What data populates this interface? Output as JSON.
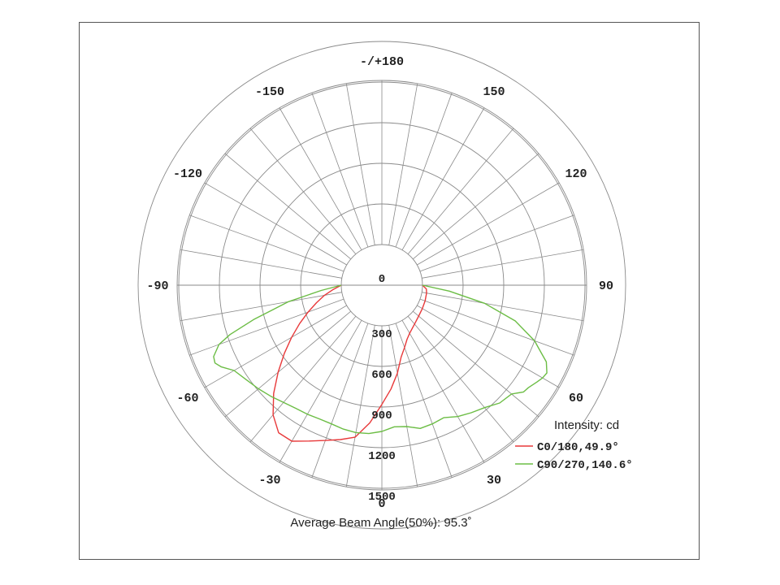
{
  "chart_data": {
    "type": "polar-line",
    "title": "",
    "intensity_unit_label": "Intensity: cd",
    "footer": "Average Beam Angle(50%): 95.3˚",
    "radial_axis": {
      "max": 1500,
      "ticks": [
        0,
        300,
        600,
        900,
        1200,
        1500
      ],
      "tick_labels": [
        "0",
        "300",
        "600",
        "900",
        "1200",
        "1500"
      ]
    },
    "angle_axis": {
      "spoke_step_deg": 10,
      "ticks": [
        0,
        30,
        60,
        90,
        120,
        150,
        180,
        -150,
        -120,
        -90,
        -60,
        -30
      ],
      "tick_labels": [
        "0",
        "30",
        "60",
        "90",
        "120",
        "150",
        "-/+180",
        "-150",
        "-120",
        "-90",
        "-60",
        "-30"
      ]
    },
    "grid": true,
    "legend_position": "bottom-right",
    "series": [
      {
        "name": "C0/180,49.9°",
        "color": "#e8393a",
        "points": [
          [
            -90,
            0
          ],
          [
            -85,
            60
          ],
          [
            -80,
            130
          ],
          [
            -75,
            200
          ],
          [
            -70,
            280
          ],
          [
            -65,
            370
          ],
          [
            -60,
            470
          ],
          [
            -55,
            580
          ],
          [
            -50,
            700
          ],
          [
            -45,
            830
          ],
          [
            -40,
            950
          ],
          [
            -35,
            1030
          ],
          [
            -30,
            1030
          ],
          [
            -25,
            970
          ],
          [
            -20,
            920
          ],
          [
            -15,
            880
          ],
          [
            -10,
            840
          ],
          [
            -5,
            720
          ],
          [
            0,
            580
          ],
          [
            5,
            470
          ],
          [
            10,
            360
          ],
          [
            15,
            250
          ],
          [
            20,
            190
          ],
          [
            25,
            140
          ],
          [
            30,
            110
          ],
          [
            40,
            75
          ],
          [
            50,
            55
          ],
          [
            60,
            45
          ],
          [
            70,
            40
          ],
          [
            80,
            35
          ],
          [
            85,
            30
          ],
          [
            90,
            0
          ]
        ]
      },
      {
        "name": "C90/270,140.6°",
        "color": "#6cbd45",
        "points": [
          [
            -90,
            0
          ],
          [
            -85,
            150
          ],
          [
            -80,
            400
          ],
          [
            -75,
            680
          ],
          [
            -72,
            880
          ],
          [
            -70,
            980
          ],
          [
            -67,
            1050
          ],
          [
            -65,
            1060
          ],
          [
            -63,
            1030
          ],
          [
            -60,
            960
          ],
          [
            -55,
            920
          ],
          [
            -50,
            890
          ],
          [
            -45,
            860
          ],
          [
            -40,
            830
          ],
          [
            -35,
            810
          ],
          [
            -30,
            800
          ],
          [
            -25,
            790
          ],
          [
            -20,
            790
          ],
          [
            -15,
            800
          ],
          [
            -10,
            805
          ],
          [
            -5,
            800
          ],
          [
            0,
            780
          ],
          [
            5,
            750
          ],
          [
            10,
            760
          ],
          [
            15,
            795
          ],
          [
            20,
            790
          ],
          [
            25,
            780
          ],
          [
            30,
            820
          ],
          [
            35,
            850
          ],
          [
            40,
            880
          ],
          [
            45,
            930
          ],
          [
            50,
            950
          ],
          [
            53,
            1010
          ],
          [
            55,
            1020
          ],
          [
            58,
            1050
          ],
          [
            60,
            1070
          ],
          [
            62,
            1080
          ],
          [
            65,
            1040
          ],
          [
            68,
            950
          ],
          [
            70,
            900
          ],
          [
            75,
            720
          ],
          [
            80,
            470
          ],
          [
            85,
            200
          ],
          [
            90,
            0
          ]
        ]
      }
    ]
  }
}
